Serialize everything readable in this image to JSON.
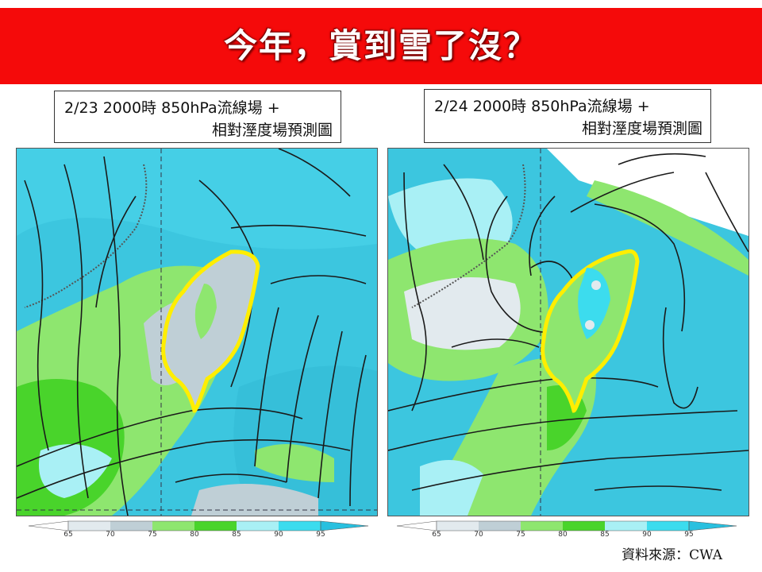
{
  "header": {
    "title": "今年，賞到雪了沒？",
    "background": "#f50a0a"
  },
  "panels": [
    {
      "title_line1": "2/23 2000時  850hPa流線場 +",
      "title_line2": "相對溼度場預測圖"
    },
    {
      "title_line1": "2/24 2000時  850hPa流線場 +",
      "title_line2": "相對溼度場預測圖"
    }
  ],
  "colorbar": {
    "ticks": [
      "65",
      "70",
      "75",
      "80",
      "85",
      "90",
      "95"
    ],
    "colors": [
      "#e2eaee",
      "#bfcfd6",
      "#8ee66f",
      "#49d42b",
      "#a9f0f5",
      "#3cdcee",
      "#29c0df"
    ]
  },
  "source": "資料來源：CWA"
}
